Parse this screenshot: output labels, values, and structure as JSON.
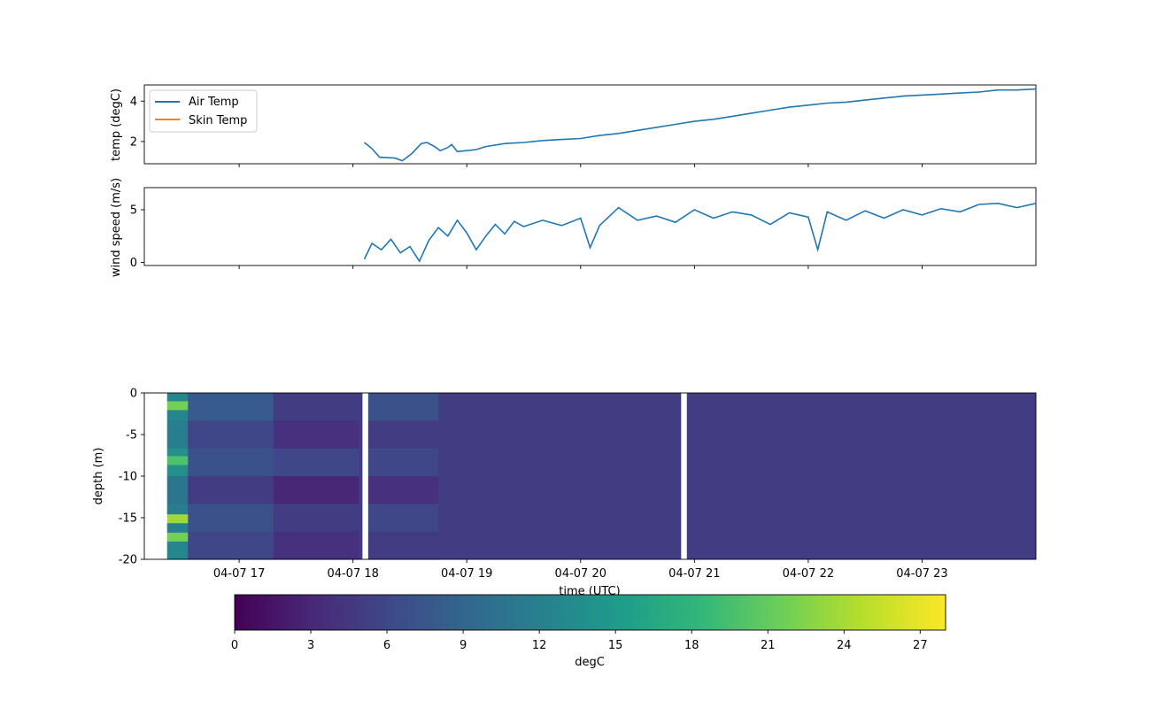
{
  "chart_data": [
    {
      "type": "line",
      "panel": "temperature",
      "ylabel": "temp (degC)",
      "yticks": [
        2,
        4
      ],
      "ylim": [
        0.9,
        4.8
      ],
      "xlim": [
        "2024-04-07 16:10",
        "2024-04-08 00:00"
      ],
      "legend_placement": "top-left",
      "legend_entries": [
        "Air Temp",
        "Skin Temp"
      ],
      "series": [
        {
          "name": "Air Temp",
          "color": "#1f77b4",
          "keypoints": [
            [
              "18:06",
              1.95
            ],
            [
              "18:10",
              1.65
            ],
            [
              "18:14",
              1.22
            ],
            [
              "18:22",
              1.18
            ],
            [
              "18:26",
              1.05
            ],
            [
              "18:31",
              1.4
            ],
            [
              "18:36",
              1.9
            ],
            [
              "18:39",
              1.95
            ],
            [
              "18:43",
              1.75
            ],
            [
              "18:46",
              1.55
            ],
            [
              "18:50",
              1.7
            ],
            [
              "18:52",
              1.85
            ],
            [
              "18:55",
              1.5
            ],
            [
              "19:00",
              1.55
            ],
            [
              "19:05",
              1.6
            ],
            [
              "19:10",
              1.75
            ],
            [
              "19:20",
              1.9
            ],
            [
              "19:30",
              1.95
            ],
            [
              "19:40",
              2.05
            ],
            [
              "19:50",
              2.1
            ],
            [
              "20:00",
              2.15
            ],
            [
              "20:10",
              2.3
            ],
            [
              "20:20",
              2.4
            ],
            [
              "20:30",
              2.55
            ],
            [
              "20:40",
              2.7
            ],
            [
              "20:50",
              2.85
            ],
            [
              "21:00",
              3.0
            ],
            [
              "21:10",
              3.1
            ],
            [
              "21:20",
              3.25
            ],
            [
              "21:30",
              3.4
            ],
            [
              "21:40",
              3.55
            ],
            [
              "21:50",
              3.7
            ],
            [
              "22:00",
              3.8
            ],
            [
              "22:10",
              3.9
            ],
            [
              "22:20",
              3.95
            ],
            [
              "22:30",
              4.05
            ],
            [
              "22:40",
              4.15
            ],
            [
              "22:50",
              4.25
            ],
            [
              "23:00",
              4.3
            ],
            [
              "23:10",
              4.35
            ],
            [
              "23:20",
              4.4
            ],
            [
              "23:30",
              4.45
            ],
            [
              "23:40",
              4.55
            ],
            [
              "23:50",
              4.55
            ],
            [
              "00:00",
              4.6
            ]
          ]
        },
        {
          "name": "Skin Temp",
          "color": "#ff7f0e",
          "keypoints": []
        }
      ]
    },
    {
      "type": "line",
      "panel": "wind",
      "ylabel": "wind speed (m/s)",
      "yticks": [
        0,
        5
      ],
      "ylim": [
        -0.3,
        7.1
      ],
      "xlim": [
        "2024-04-07 16:10",
        "2024-04-08 00:00"
      ],
      "series": [
        {
          "color": "#1f77b4",
          "keypoints": [
            [
              "18:06",
              0.3
            ],
            [
              "18:10",
              1.8
            ],
            [
              "18:15",
              1.2
            ],
            [
              "18:20",
              2.2
            ],
            [
              "18:25",
              0.9
            ],
            [
              "18:30",
              1.5
            ],
            [
              "18:35",
              0.1
            ],
            [
              "18:40",
              2.1
            ],
            [
              "18:45",
              3.3
            ],
            [
              "18:50",
              2.5
            ],
            [
              "18:55",
              4.0
            ],
            [
              "19:00",
              2.8
            ],
            [
              "19:05",
              1.2
            ],
            [
              "19:10",
              2.5
            ],
            [
              "19:15",
              3.6
            ],
            [
              "19:20",
              2.7
            ],
            [
              "19:25",
              3.9
            ],
            [
              "19:30",
              3.4
            ],
            [
              "19:40",
              4.0
            ],
            [
              "19:50",
              3.5
            ],
            [
              "20:00",
              4.2
            ],
            [
              "20:05",
              1.4
            ],
            [
              "20:10",
              3.5
            ],
            [
              "20:20",
              5.2
            ],
            [
              "20:30",
              4.0
            ],
            [
              "20:40",
              4.4
            ],
            [
              "20:50",
              3.8
            ],
            [
              "21:00",
              5.0
            ],
            [
              "21:10",
              4.2
            ],
            [
              "21:20",
              4.8
            ],
            [
              "21:30",
              4.5
            ],
            [
              "21:40",
              3.6
            ],
            [
              "21:50",
              4.7
            ],
            [
              "22:00",
              4.3
            ],
            [
              "22:05",
              1.2
            ],
            [
              "22:10",
              4.8
            ],
            [
              "22:20",
              4.0
            ],
            [
              "22:30",
              4.9
            ],
            [
              "22:40",
              4.2
            ],
            [
              "22:50",
              5.0
            ],
            [
              "23:00",
              4.5
            ],
            [
              "23:10",
              5.1
            ],
            [
              "23:20",
              4.8
            ],
            [
              "23:30",
              5.5
            ],
            [
              "23:40",
              5.6
            ],
            [
              "23:50",
              5.2
            ],
            [
              "00:00",
              5.6
            ]
          ]
        }
      ]
    },
    {
      "type": "heatmap",
      "panel": "temperature-profile",
      "ylabel": "depth (m)",
      "yticks": [
        0,
        -5,
        -10,
        -15,
        -20
      ],
      "ylim": [
        -20,
        0
      ],
      "xlabel": "time (UTC)",
      "xtick_labels": [
        "04-07 17",
        "04-07 18",
        "04-07 19",
        "04-07 20",
        "04-07 21",
        "04-07 22",
        "04-07 23"
      ],
      "xlim": [
        "2024-04-07 16:10",
        "2024-04-08 00:00"
      ],
      "data_gaps": [
        [
          "16:10",
          "16:22"
        ],
        [
          "18:05",
          "18:08"
        ],
        [
          "20:53",
          "20:56"
        ]
      ],
      "background_value_degC": 5.0,
      "colorbar": {
        "label": "degC",
        "ticks": [
          0,
          3,
          6,
          9,
          12,
          15,
          18,
          21,
          24,
          27
        ],
        "range": [
          0,
          28
        ],
        "colormap": "viridis"
      }
    }
  ]
}
